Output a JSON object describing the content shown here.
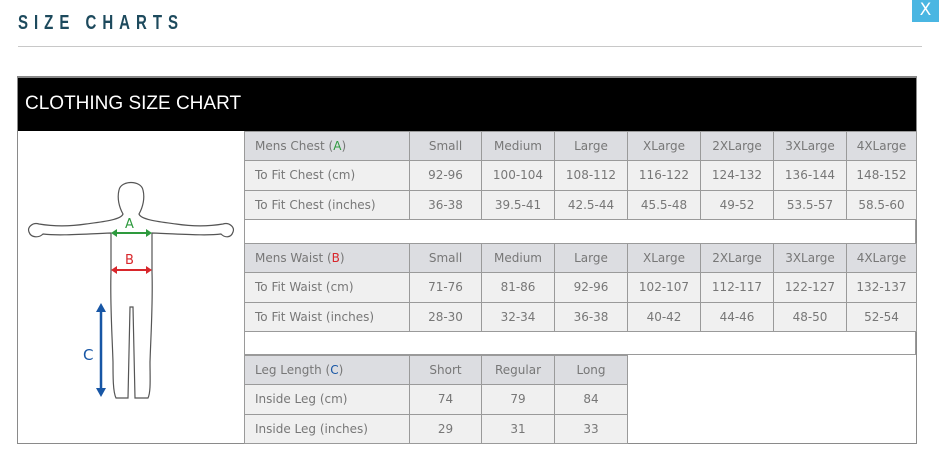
{
  "header": {
    "title": "SIZE CHARTS",
    "close_label": "X"
  },
  "chart": {
    "title": "CLOTHING SIZE CHART",
    "figure_labels": {
      "a": "A",
      "b": "B",
      "c": "C"
    },
    "colors": {
      "a": "#2e9a3e",
      "b": "#d8262b",
      "c": "#1756a5"
    },
    "sections": [
      {
        "header": {
          "label": "Mens Chest (",
          "key": "A",
          "suffix": ")",
          "cols": [
            "Small",
            "Medium",
            "Large",
            "XLarge",
            "2XLarge",
            "3XLarge",
            "4XLarge"
          ]
        },
        "rows": [
          {
            "label": "To Fit Chest (cm)",
            "values": [
              "92-96",
              "100-104",
              "108-112",
              "116-122",
              "124-132",
              "136-144",
              "148-152"
            ]
          },
          {
            "label": "To Fit Chest (inches)",
            "values": [
              "36-38",
              "39.5-41",
              "42.5-44",
              "45.5-48",
              "49-52",
              "53.5-57",
              "58.5-60"
            ]
          }
        ]
      },
      {
        "header": {
          "label": "Mens Waist (",
          "key": "B",
          "suffix": ")",
          "cols": [
            "Small",
            "Medium",
            "Large",
            "XLarge",
            "2XLarge",
            "3XLarge",
            "4XLarge"
          ]
        },
        "rows": [
          {
            "label": "To Fit Waist (cm)",
            "values": [
              "71-76",
              "81-86",
              "92-96",
              "102-107",
              "112-117",
              "122-127",
              "132-137"
            ]
          },
          {
            "label": "To Fit Waist (inches)",
            "values": [
              "28-30",
              "32-34",
              "36-38",
              "40-42",
              "44-46",
              "48-50",
              "52-54"
            ]
          }
        ]
      },
      {
        "header": {
          "label": "Leg Length (",
          "key": "C",
          "suffix": ")",
          "cols": [
            "Short",
            "Regular",
            "Long"
          ]
        },
        "rows": [
          {
            "label": "Inside Leg (cm)",
            "values": [
              "74",
              "79",
              "84"
            ]
          },
          {
            "label": "Inside Leg (inches)",
            "values": [
              "29",
              "31",
              "33"
            ]
          }
        ]
      }
    ]
  }
}
